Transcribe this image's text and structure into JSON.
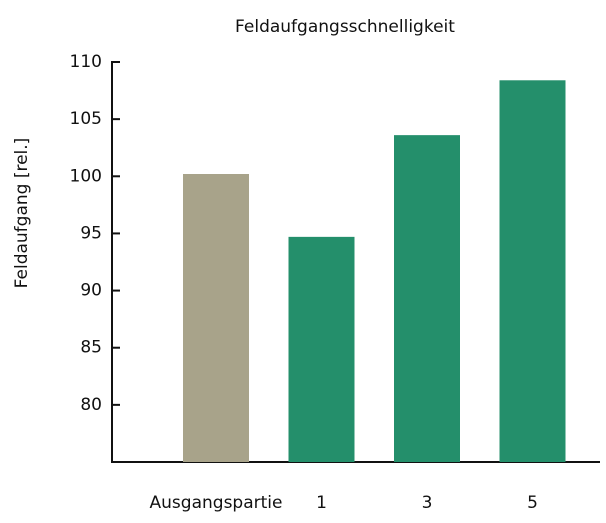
{
  "chart_data": {
    "type": "bar",
    "title": "Feldaufgangsschnelligkeit",
    "y_label": "Feldaufgang [rel.]",
    "categories": [
      "Ausgangspartie",
      "1",
      "3",
      "5"
    ],
    "values": [
      100.2,
      94.7,
      103.6,
      108.4
    ],
    "colors": [
      "#a8a38a",
      "#248f6b",
      "#248f6b",
      "#248f6b"
    ],
    "ylim": [
      75,
      110
    ],
    "yticks": [
      80,
      85,
      90,
      95,
      100,
      105,
      110
    ],
    "grid": false
  }
}
